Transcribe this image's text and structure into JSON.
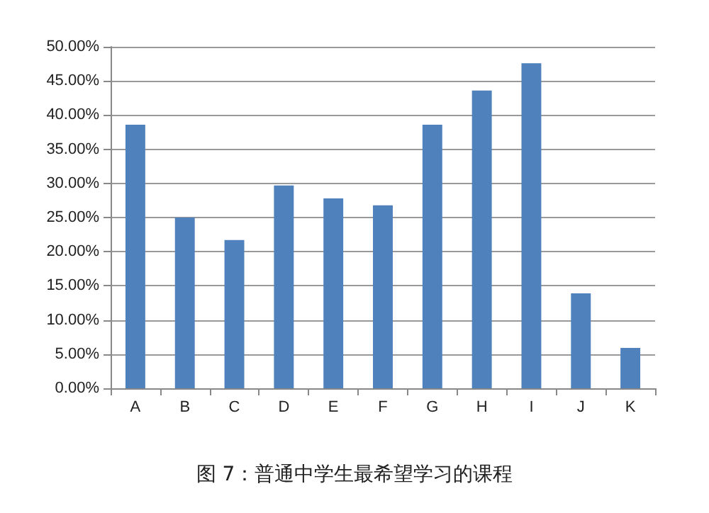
{
  "chart_data": {
    "type": "bar",
    "categories": [
      "A",
      "B",
      "C",
      "D",
      "E",
      "F",
      "G",
      "H",
      "I",
      "J",
      "K"
    ],
    "values": [
      38.6,
      25,
      21.7,
      29.7,
      27.8,
      26.8,
      38.6,
      43.6,
      47.6,
      13.9,
      5.9
    ],
    "color": "#4f81bd",
    "ylim": [
      0,
      50
    ],
    "yticks": [
      {
        "value": 0,
        "label": "0.00%"
      },
      {
        "value": 5,
        "label": "5.00%"
      },
      {
        "value": 10,
        "label": "10.00%"
      },
      {
        "value": 15,
        "label": "15.00%"
      },
      {
        "value": 20,
        "label": "20.00%"
      },
      {
        "value": 25,
        "label": "25.00%"
      },
      {
        "value": 30,
        "label": "30.00%"
      },
      {
        "value": 35,
        "label": "35.00%"
      },
      {
        "value": 40,
        "label": "40.00%"
      },
      {
        "value": 45,
        "label": "45.00%"
      },
      {
        "value": 50,
        "label": "50.00%"
      }
    ],
    "grid": "y",
    "annotations": [
      "图 7：普通中学生最希望学习的课程"
    ]
  }
}
